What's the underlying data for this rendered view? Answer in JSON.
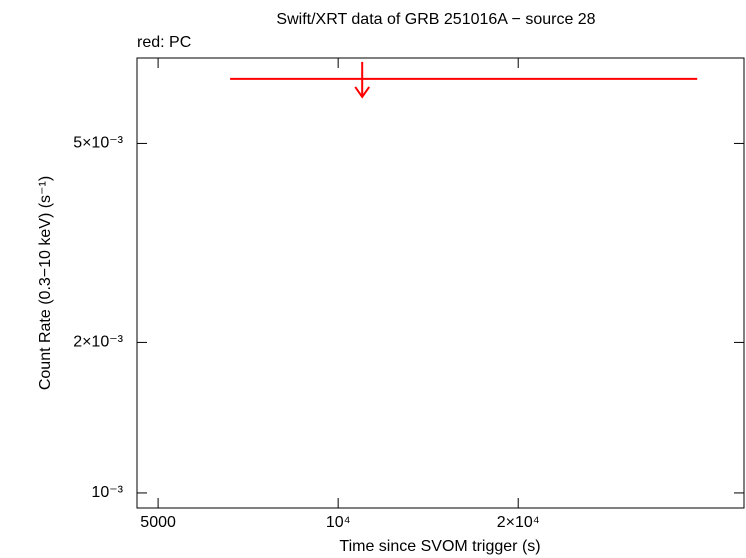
{
  "chart_data": {
    "type": "scatter",
    "title": "Swift/XRT data of GRB 251016A − source 28",
    "x_label": "Time since SVOM trigger (s)",
    "y_label": "Count Rate (0.3−10 keV) (s⁻¹)",
    "xscale": "log",
    "yscale": "log",
    "xlim": [
      4610,
      47700
    ],
    "ylim": [
      0.000933,
      0.00741
    ],
    "xticks": [
      5000,
      {
        "value": 10000,
        "label": "10⁴"
      },
      {
        "value": 20000,
        "label": "2×10⁴"
      }
    ],
    "yticks": [
      {
        "value": 0.001,
        "label": "10⁻³"
      },
      {
        "value": 0.002,
        "label": "2×10⁻³"
      },
      {
        "value": 0.005,
        "label": "5×10⁻³"
      }
    ],
    "series": [
      {
        "name": "red: PC",
        "color": "#ff0000",
        "upper_limit": true,
        "x": [
          10970
        ],
        "x_low": [
          6597
        ],
        "x_high": [
          39840
        ],
        "values": [
          0.00673
        ]
      }
    ]
  }
}
